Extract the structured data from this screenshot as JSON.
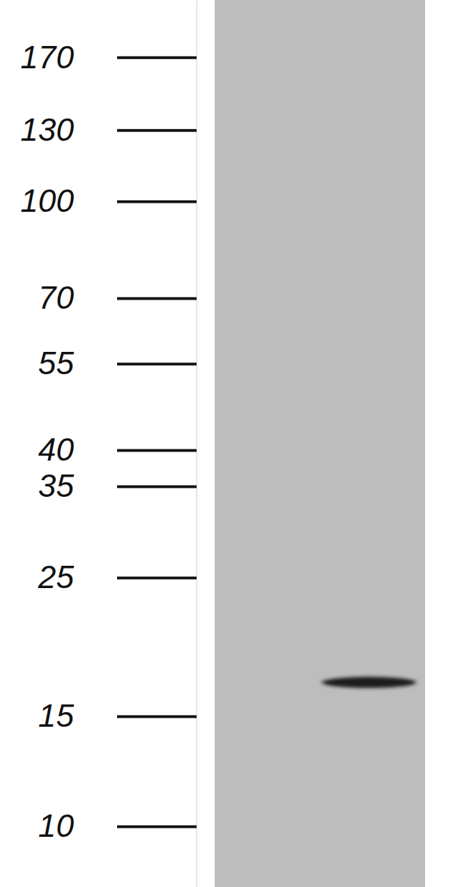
{
  "chart_data": {
    "type": "western_blot",
    "log": "y",
    "ylim": [
      8,
      210
    ],
    "yticks": [
      10,
      15,
      25,
      35,
      40,
      55,
      70,
      100,
      130,
      170
    ],
    "categories": [
      null
    ],
    "values": [
      17
    ],
    "color": "#1c1c1c"
  }
}
